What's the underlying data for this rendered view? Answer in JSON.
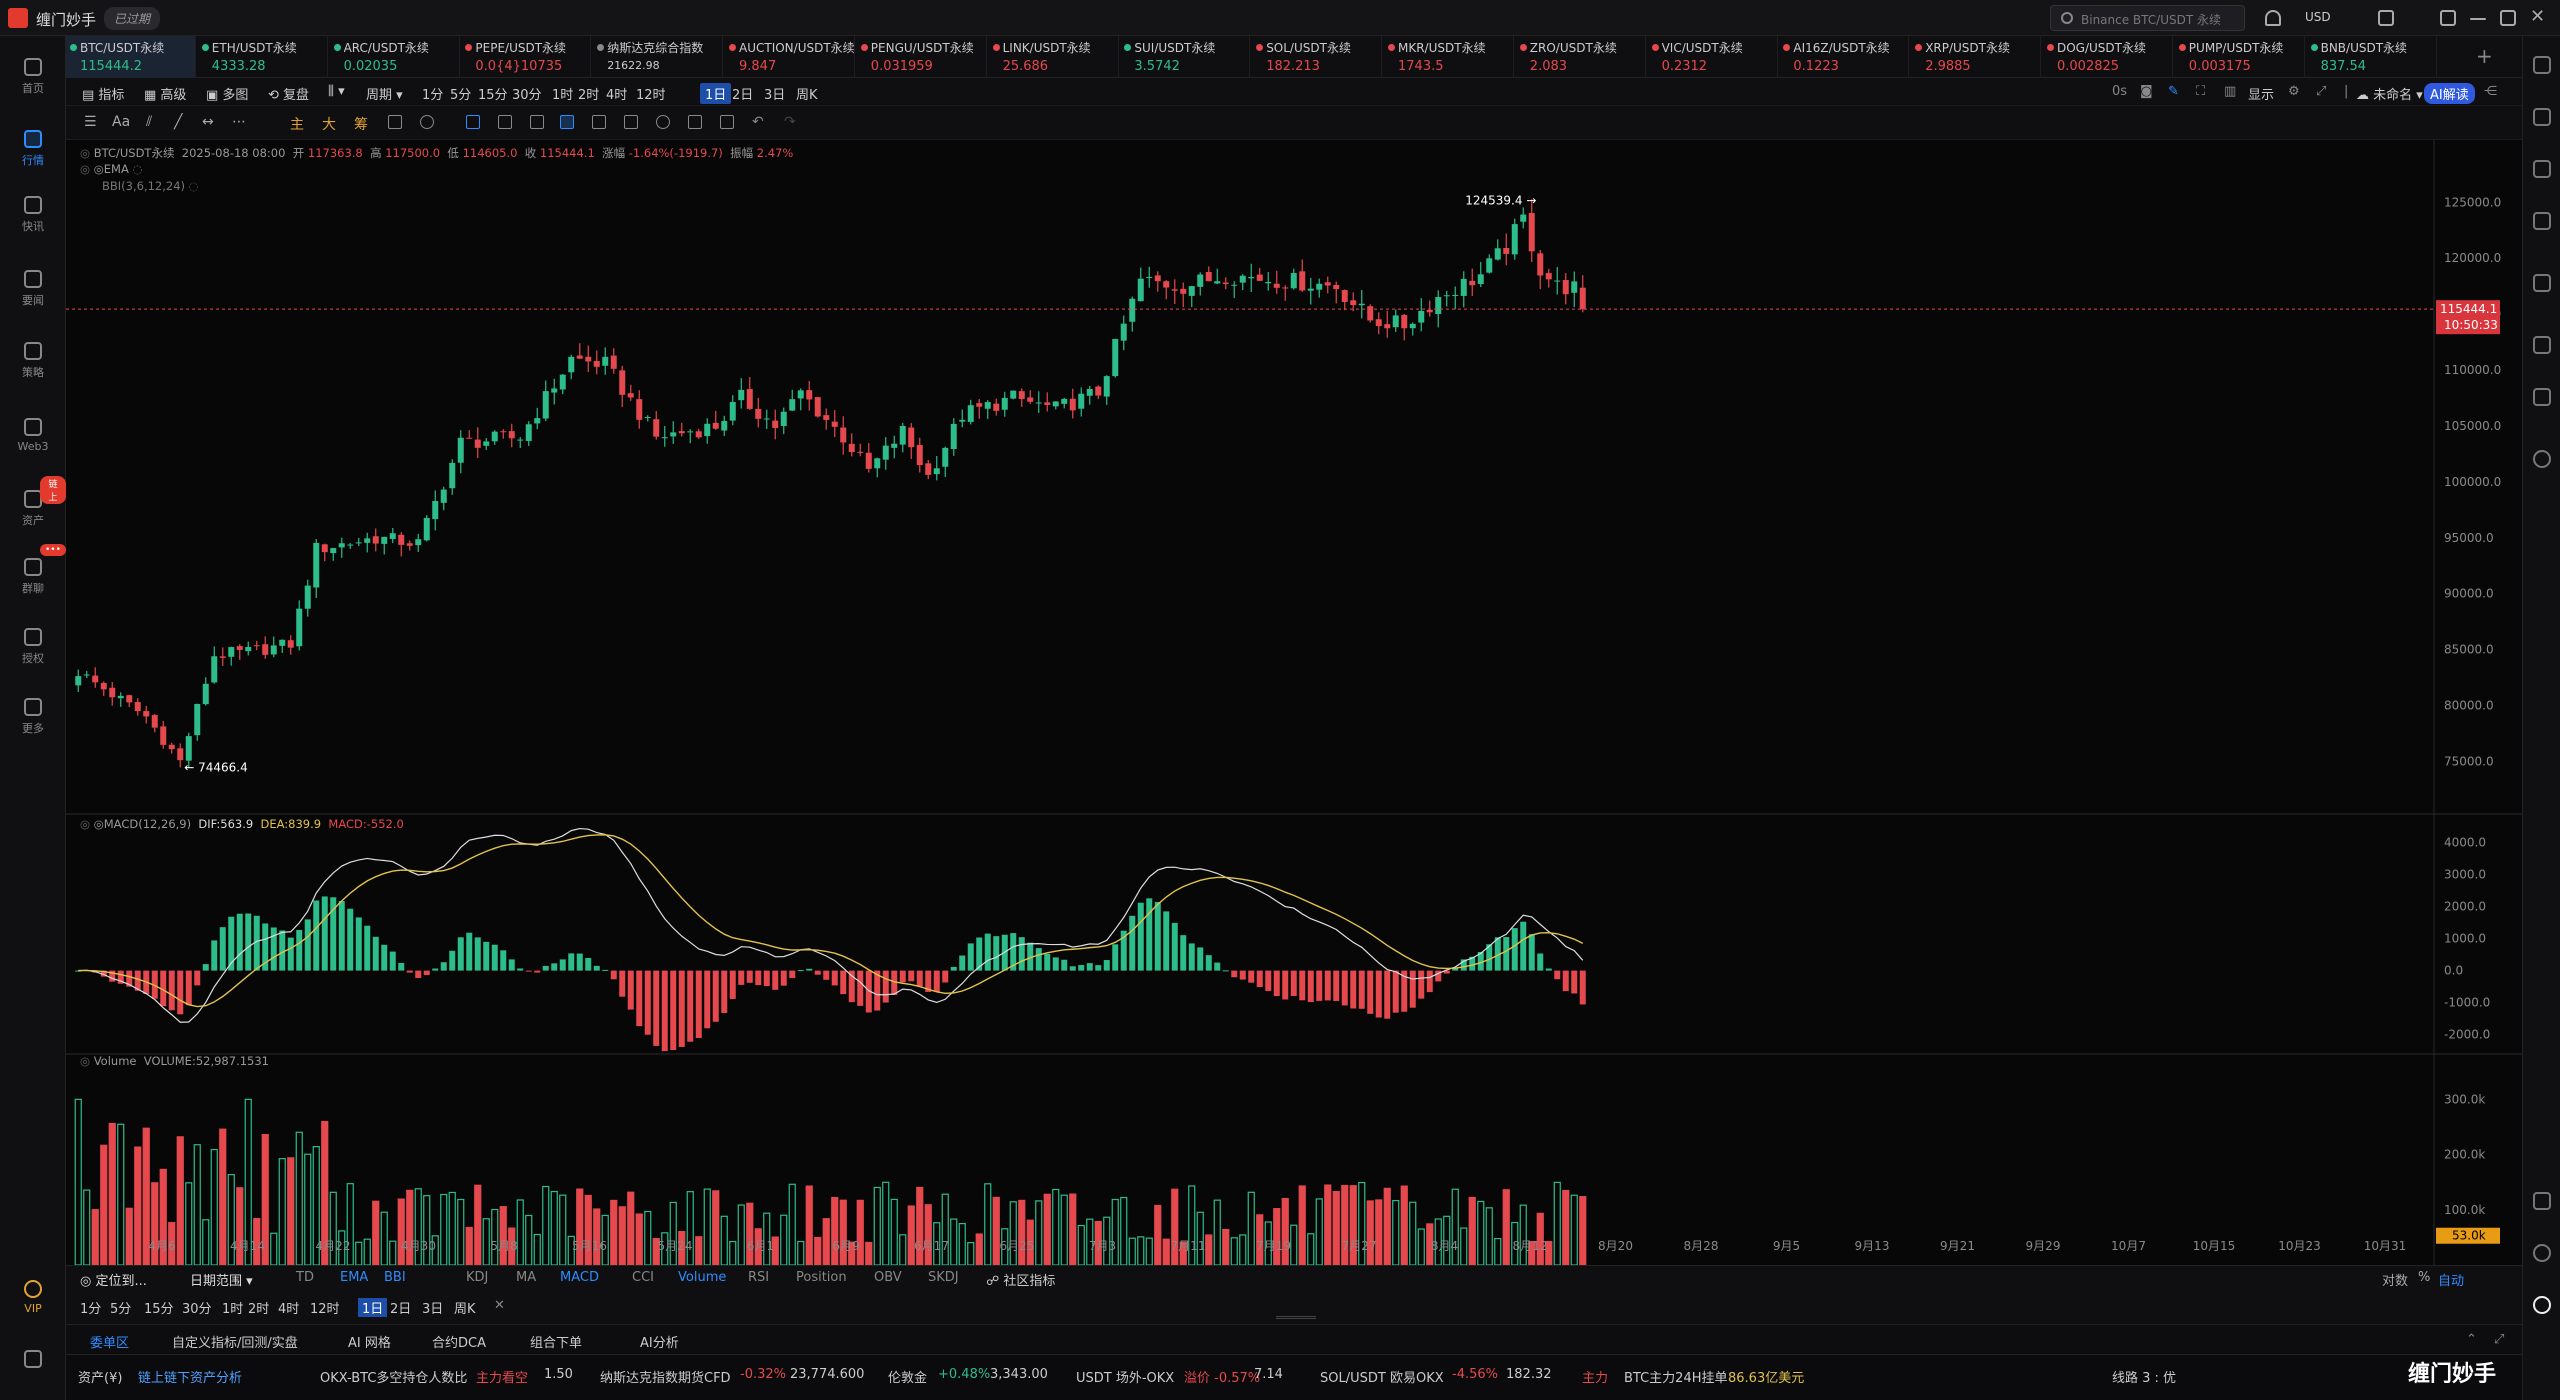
{
  "titlebar": {
    "app_name": "缠门妙手",
    "expired": "已过期",
    "search_placeholder": "Binance BTC/USDT 永续",
    "currency": "USD"
  },
  "sidebar": [
    {
      "label": "首页",
      "icon": "home-icon"
    },
    {
      "label": "行情",
      "icon": "chart-icon",
      "active": true
    },
    {
      "label": "快讯",
      "icon": "news-icon"
    },
    {
      "label": "要闻",
      "icon": "headline-icon"
    },
    {
      "label": "策略",
      "icon": "strategy-icon"
    },
    {
      "label": "Web3",
      "icon": "web3-icon"
    },
    {
      "label": "资产",
      "icon": "asset-icon",
      "badge": "链上"
    },
    {
      "label": "群聊",
      "icon": "chat-icon",
      "badge": "•••"
    },
    {
      "label": "授权",
      "icon": "auth-icon"
    },
    {
      "label": "更多",
      "icon": "more-icon"
    }
  ],
  "sidebar_bottom": {
    "vip": "VIP"
  },
  "tickers": [
    {
      "name": "BTC/USDT永续",
      "price": "115444.2",
      "dir": "up",
      "active": true
    },
    {
      "name": "ETH/USDT永续",
      "price": "4333.28",
      "dir": "up"
    },
    {
      "name": "ARC/USDT永续",
      "price": "0.02035",
      "dir": "up"
    },
    {
      "name": "PEPE/USDT永续",
      "price": "0.0{4}10735",
      "dir": "dn"
    },
    {
      "name": "纳斯达克综合指数",
      "price": "21622.98",
      "dir": "neutral"
    },
    {
      "name": "AUCTION/USDT永续",
      "price": "9.847",
      "dir": "dn"
    },
    {
      "name": "PENGU/USDT永续",
      "price": "0.031959",
      "dir": "dn"
    },
    {
      "name": "LINK/USDT永续",
      "price": "25.686",
      "dir": "dn"
    },
    {
      "name": "SUI/USDT永续",
      "price": "3.5742",
      "dir": "up"
    },
    {
      "name": "SOL/USDT永续",
      "price": "182.213",
      "dir": "dn"
    },
    {
      "name": "MKR/USDT永续",
      "price": "1743.5",
      "dir": "dn"
    },
    {
      "name": "ZRO/USDT永续",
      "price": "2.083",
      "dir": "dn"
    },
    {
      "name": "VIC/USDT永续",
      "price": "0.2312",
      "dir": "dn"
    },
    {
      "name": "AI16Z/USDT永续",
      "price": "0.1223",
      "dir": "dn"
    },
    {
      "name": "XRP/USDT永续",
      "price": "2.9885",
      "dir": "dn"
    },
    {
      "name": "DOG/USDT永续",
      "price": "0.002825",
      "dir": "dn"
    },
    {
      "name": "PUMP/USDT永续",
      "price": "0.003175",
      "dir": "dn"
    },
    {
      "name": "BNB/USDT永续",
      "price": "837.54",
      "dir": "up"
    }
  ],
  "toolbar": {
    "indicator": "指标",
    "advanced": "高级",
    "multi": "多图",
    "replay": "复盘",
    "period": "周期",
    "timeframes": [
      "1分",
      "5分",
      "15分",
      "30分",
      "1时",
      "2时",
      "4时",
      "12时",
      "1日",
      "2日",
      "3日",
      "周K"
    ],
    "selected": "1日",
    "right": {
      "zero_s": "0s",
      "display": "显示",
      "unnamed": "未命名",
      "ai": "AI解读"
    }
  },
  "drawbar": {
    "zhu": "主",
    "da": "大",
    "chou": "筹"
  },
  "legend": {
    "line1": {
      "symbol": "BTC/USDT永续",
      "date": "2025-08-18 08:00",
      "open_l": "开",
      "open": "117363.8",
      "high_l": "高",
      "high": "117500.0",
      "low_l": "低",
      "low": "114605.0",
      "close_l": "收",
      "close": "115444.1",
      "chg_l": "涨幅",
      "chg": "-1.64%(-1919.7)",
      "amp_l": "振幅",
      "amp": "2.47%"
    },
    "ema": "EMA",
    "bbi": "BBI(3,6,12,24)",
    "macd": {
      "name": "MACD(12,26,9)",
      "dif": "DIF:563.9",
      "dea": "DEA:839.9",
      "macd": "MACD:-552.0"
    },
    "volume": {
      "name": "Volume",
      "value": "VOLUME:52,987.1531"
    }
  },
  "chart_data": {
    "type": "candlestick",
    "title": "BTC/USDT永续",
    "price_axis": {
      "ticks": [
        125000,
        120000,
        115000,
        110000,
        105000,
        100000,
        95000,
        90000,
        85000,
        80000,
        75000
      ],
      "labels": [
        "125000.0",
        "120000.0",
        "115000.0",
        "110000.0",
        "105000.0",
        "100000.0",
        "95000.0",
        "90000.0",
        "85000.0",
        "80000.0",
        "75000.0"
      ],
      "range": [
        72000,
        129500
      ]
    },
    "last_price": "115444.1",
    "countdown": "10:50:33",
    "annotations": {
      "high": "124539.4",
      "low": "74466.4"
    },
    "x_labels": [
      "4月6",
      "4月14",
      "4月22",
      "4月30",
      "5月8",
      "5月16",
      "5月24",
      "6月1",
      "6月9",
      "6月17",
      "6月25",
      "7月3",
      "7月11",
      "7月19",
      "7月27",
      "8月4",
      "8月12",
      "8月20",
      "8月28",
      "9月5",
      "9月13",
      "9月21",
      "9月29",
      "10月7",
      "10月15",
      "10月23",
      "10月31"
    ],
    "anchors": [
      [
        0,
        83000
      ],
      [
        8,
        79000
      ],
      [
        12,
        75000
      ],
      [
        16,
        84500
      ],
      [
        20,
        84800
      ],
      [
        25,
        85500
      ],
      [
        28,
        94000
      ],
      [
        35,
        95000
      ],
      [
        40,
        94500
      ],
      [
        45,
        103500
      ],
      [
        52,
        104000
      ],
      [
        58,
        111000
      ],
      [
        62,
        110500
      ],
      [
        68,
        104000
      ],
      [
        75,
        105000
      ],
      [
        78,
        107500
      ],
      [
        82,
        105000
      ],
      [
        85,
        108000
      ],
      [
        90,
        104000
      ],
      [
        93,
        101000
      ],
      [
        97,
        104500
      ],
      [
        100,
        100500
      ],
      [
        104,
        106000
      ],
      [
        110,
        107500
      ],
      [
        115,
        106500
      ],
      [
        120,
        108000
      ],
      [
        125,
        118000
      ],
      [
        130,
        117500
      ],
      [
        135,
        118500
      ],
      [
        142,
        118000
      ],
      [
        148,
        117500
      ],
      [
        152,
        114500
      ],
      [
        156,
        114000
      ],
      [
        160,
        116500
      ],
      [
        165,
        118500
      ],
      [
        168,
        121000
      ],
      [
        170,
        123500
      ],
      [
        172,
        119000
      ],
      [
        174,
        117500
      ],
      [
        176,
        117363.8
      ],
      [
        177,
        115444.1
      ]
    ],
    "macd_axis": {
      "ticks": [
        4000,
        3000,
        2000,
        1000,
        0,
        -1000,
        -2000
      ],
      "labels": [
        "4000.0",
        "3000.0",
        "2000.0",
        "1000.0",
        "0.0",
        "-1000.0",
        "-2000.0"
      ],
      "range": [
        -2200,
        4300
      ]
    },
    "volume_axis": {
      "ticks": [
        300000,
        200000,
        100000
      ],
      "labels": [
        "300.0k",
        "200.0k",
        "100.0k"
      ],
      "range": [
        0,
        355000
      ],
      "last": "53.0k"
    },
    "colors": {
      "up": "#2dbd8b",
      "down": "#e5484d",
      "dif": "#dddddd",
      "dea": "#e2c24a"
    }
  },
  "bottom": {
    "locate": "定位到...",
    "range": "日期范围",
    "indicators": [
      "TD",
      "EMA",
      "BBI",
      "KDJ",
      "MA",
      "MACD",
      "CCI",
      "Volume",
      "RSI",
      "Position",
      "OBV",
      "SKDJ"
    ],
    "indicators_on": [
      "EMA",
      "BBI",
      "MACD",
      "Volume"
    ],
    "community": "社区指标",
    "right": [
      "对数",
      "%",
      "自动"
    ],
    "timeframes": [
      "1分",
      "5分",
      "15分",
      "30分",
      "1时",
      "2时",
      "4时",
      "12时",
      "1日",
      "2日",
      "3日",
      "周K"
    ]
  },
  "tabs2": [
    "委单区",
    "自定义指标/回测/实盘",
    "AI 网格",
    "合约DCA",
    "组合下单",
    "AI分析"
  ],
  "ticker2": [
    {
      "text": "资产(¥)",
      "cls": ""
    },
    {
      "text": "链上链下资产分析",
      "cls": "blue"
    },
    {
      "text": "OKX-BTC多空持仓人数比",
      "cls": ""
    },
    {
      "text": "主力看空",
      "cls": "dn"
    },
    {
      "text": "1.50",
      "cls": ""
    },
    {
      "text": "纳斯达克指数期货CFD",
      "cls": ""
    },
    {
      "text": "-0.32%",
      "cls": "dn"
    },
    {
      "text": "23,774.600",
      "cls": ""
    },
    {
      "text": "伦敦金",
      "cls": ""
    },
    {
      "text": "+0.48%",
      "cls": "up"
    },
    {
      "text": "3,343.00",
      "cls": ""
    },
    {
      "text": "USDT 场外-OKX",
      "cls": ""
    },
    {
      "text": "溢价 -0.57%",
      "cls": "dn"
    },
    {
      "text": "7.14",
      "cls": ""
    },
    {
      "text": "SOL/USDT 欧易OKX",
      "cls": ""
    },
    {
      "text": "-4.56%",
      "cls": "dn"
    },
    {
      "text": "182.32",
      "cls": ""
    },
    {
      "text": "主力",
      "cls": "dn"
    },
    {
      "text": "BTC主力24H挂单",
      "cls": ""
    },
    {
      "text": "86.63亿美元",
      "cls": "gold"
    },
    {
      "text": "线路 3 : 优",
      "cls": ""
    }
  ],
  "watermark": "缠门妙手"
}
